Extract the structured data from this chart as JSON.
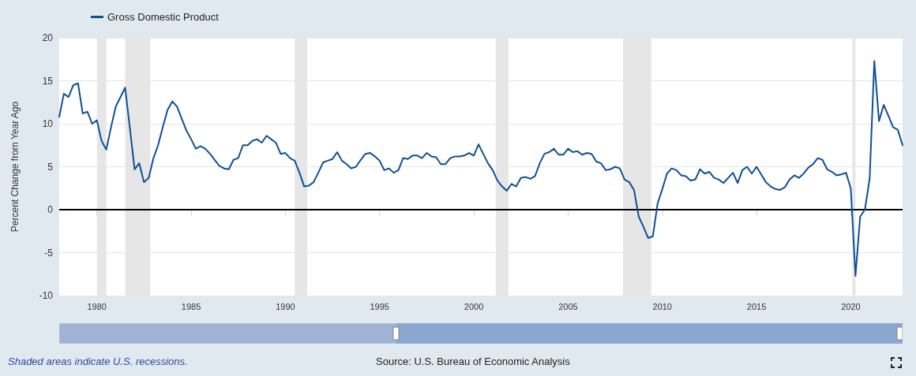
{
  "chart_data": {
    "type": "line",
    "ylabel": "Percent Change from Year Ago",
    "xlim": [
      "1978-01",
      "2022-10"
    ],
    "xticks": [
      "1980",
      "1985",
      "1990",
      "1995",
      "2000",
      "2005",
      "2010",
      "2015",
      "2020"
    ],
    "ylim": [
      -10,
      20
    ],
    "yticks": [
      -10,
      -5,
      0,
      5,
      10,
      15,
      20
    ],
    "grid": "y",
    "legend": "top left",
    "marker": "none",
    "line_style": "solid",
    "series": [
      {
        "name": "Gross Domestic Product",
        "color": "#0e4f96",
        "x": [
          "1978-01",
          "1978-04",
          "1978-07",
          "1978-10",
          "1979-01",
          "1979-04",
          "1979-07",
          "1979-10",
          "1980-01",
          "1980-04",
          "1980-07",
          "1980-10",
          "1981-01",
          "1981-04",
          "1981-07",
          "1981-10",
          "1982-01",
          "1982-04",
          "1982-07",
          "1982-10",
          "1983-01",
          "1983-04",
          "1983-07",
          "1983-10",
          "1984-01",
          "1984-04",
          "1984-07",
          "1984-10",
          "1985-01",
          "1985-04",
          "1985-07",
          "1985-10",
          "1986-01",
          "1986-04",
          "1986-07",
          "1986-10",
          "1987-01",
          "1987-04",
          "1987-07",
          "1987-10",
          "1988-01",
          "1988-04",
          "1988-07",
          "1988-10",
          "1989-01",
          "1989-04",
          "1989-07",
          "1989-10",
          "1990-01",
          "1990-04",
          "1990-07",
          "1990-10",
          "1991-01",
          "1991-04",
          "1991-07",
          "1991-10",
          "1992-01",
          "1992-04",
          "1992-07",
          "1992-10",
          "1993-01",
          "1993-04",
          "1993-07",
          "1993-10",
          "1994-01",
          "1994-04",
          "1994-07",
          "1994-10",
          "1995-01",
          "1995-04",
          "1995-07",
          "1995-10",
          "1996-01",
          "1996-04",
          "1996-07",
          "1996-10",
          "1997-01",
          "1997-04",
          "1997-07",
          "1997-10",
          "1998-01",
          "1998-04",
          "1998-07",
          "1998-10",
          "1999-01",
          "1999-04",
          "1999-07",
          "1999-10",
          "2000-01",
          "2000-04",
          "2000-07",
          "2000-10",
          "2001-01",
          "2001-04",
          "2001-07",
          "2001-10",
          "2002-01",
          "2002-04",
          "2002-07",
          "2002-10",
          "2003-01",
          "2003-04",
          "2003-07",
          "2003-10",
          "2004-01",
          "2004-04",
          "2004-07",
          "2004-10",
          "2005-01",
          "2005-04",
          "2005-07",
          "2005-10",
          "2006-01",
          "2006-04",
          "2006-07",
          "2006-10",
          "2007-01",
          "2007-04",
          "2007-07",
          "2007-10",
          "2008-01",
          "2008-04",
          "2008-07",
          "2008-10",
          "2009-01",
          "2009-04",
          "2009-07",
          "2009-10",
          "2010-01",
          "2010-04",
          "2010-07",
          "2010-10",
          "2011-01",
          "2011-04",
          "2011-07",
          "2011-10",
          "2012-01",
          "2012-04",
          "2012-07",
          "2012-10",
          "2013-01",
          "2013-04",
          "2013-07",
          "2013-10",
          "2014-01",
          "2014-04",
          "2014-07",
          "2014-10",
          "2015-01",
          "2015-04",
          "2015-07",
          "2015-10",
          "2016-01",
          "2016-04",
          "2016-07",
          "2016-10",
          "2017-01",
          "2017-04",
          "2017-07",
          "2017-10",
          "2018-01",
          "2018-04",
          "2018-07",
          "2018-10",
          "2019-01",
          "2019-04",
          "2019-07",
          "2019-10",
          "2020-01",
          "2020-04",
          "2020-07",
          "2020-10",
          "2021-01",
          "2021-04",
          "2021-07",
          "2021-10",
          "2022-01",
          "2022-04",
          "2022-07",
          "2022-10"
        ],
        "values": [
          10.8,
          13.5,
          13.1,
          14.5,
          14.7,
          11.2,
          11.4,
          10.0,
          10.4,
          8.0,
          7.0,
          9.6,
          12.0,
          13.1,
          14.2,
          9.5,
          4.7,
          5.4,
          3.2,
          3.7,
          6.0,
          7.5,
          9.6,
          11.6,
          12.6,
          12.0,
          10.6,
          9.2,
          8.2,
          7.1,
          7.4,
          7.1,
          6.5,
          5.8,
          5.1,
          4.8,
          4.7,
          5.8,
          6.0,
          7.5,
          7.5,
          8.0,
          8.2,
          7.8,
          8.6,
          8.2,
          7.8,
          6.5,
          6.6,
          6.0,
          5.7,
          4.3,
          2.7,
          2.8,
          3.2,
          4.3,
          5.5,
          5.7,
          5.9,
          6.7,
          5.7,
          5.3,
          4.8,
          5.0,
          5.8,
          6.5,
          6.6,
          6.2,
          5.7,
          4.6,
          4.8,
          4.3,
          4.6,
          6.0,
          5.9,
          6.3,
          6.3,
          6.0,
          6.6,
          6.2,
          6.1,
          5.3,
          5.3,
          6.0,
          6.2,
          6.2,
          6.3,
          6.6,
          6.3,
          7.6,
          6.5,
          5.4,
          4.6,
          3.4,
          2.7,
          2.2,
          3.0,
          2.7,
          3.7,
          3.8,
          3.6,
          3.9,
          5.4,
          6.5,
          6.7,
          7.1,
          6.4,
          6.4,
          7.1,
          6.7,
          6.8,
          6.4,
          6.6,
          6.5,
          5.6,
          5.4,
          4.6,
          4.7,
          5.0,
          4.8,
          3.5,
          3.2,
          2.3,
          -0.8,
          -2.0,
          -3.3,
          -3.1,
          0.7,
          2.4,
          4.2,
          4.8,
          4.6,
          4.0,
          3.9,
          3.4,
          3.5,
          4.7,
          4.2,
          4.4,
          3.7,
          3.5,
          3.1,
          3.7,
          4.3,
          3.1,
          4.6,
          5.0,
          4.2,
          5.0,
          4.1,
          3.2,
          2.7,
          2.4,
          2.3,
          2.6,
          3.5,
          4.0,
          3.7,
          4.2,
          4.9,
          5.3,
          6.0,
          5.8,
          4.7,
          4.4,
          4.0,
          4.1,
          4.3,
          2.5,
          -7.7,
          -0.8,
          0.0,
          3.6,
          17.3,
          10.3,
          12.2,
          10.9,
          9.6,
          9.3,
          7.5
        ]
      }
    ],
    "ref_lines": [
      {
        "axis": "y",
        "value": 0,
        "color": "#000000",
        "line_style": "solid"
      }
    ],
    "bands": [
      {
        "axis": "x",
        "from": "1980-01",
        "to": "1980-07",
        "color": "#e6e6e6"
      },
      {
        "axis": "x",
        "from": "1981-07",
        "to": "1982-11",
        "color": "#e6e6e6"
      },
      {
        "axis": "x",
        "from": "1990-07",
        "to": "1991-03",
        "color": "#e6e6e6"
      },
      {
        "axis": "x",
        "from": "2001-03",
        "to": "2001-11",
        "color": "#e6e6e6"
      },
      {
        "axis": "x",
        "from": "2007-12",
        "to": "2009-06",
        "color": "#e6e6e6"
      },
      {
        "axis": "x",
        "from": "2020-02",
        "to": "2020-04",
        "color": "#e6e6e6"
      }
    ],
    "annotations": [
      "Shaded areas indicate U.S. recessions.",
      "Source: U.S. Bureau of Economic Analysis"
    ]
  }
}
